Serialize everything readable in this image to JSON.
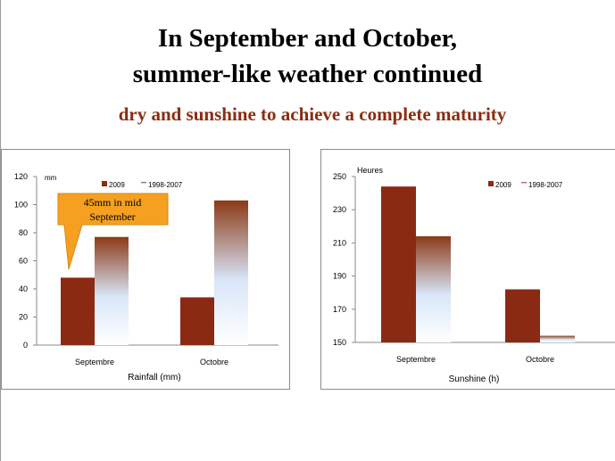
{
  "title_line1": "In September and October,",
  "title_line2": "summer-like weather continued",
  "subtitle": "dry and sunshine to achieve a complete maturity",
  "colors": {
    "title": "#000000",
    "subtitle": "#8b2d12",
    "series_2009": "#8b2a12",
    "series_avg_top": "#8b3a16",
    "series_avg_bottom": "#ffffff",
    "callout": "#f5a020"
  },
  "chart_data": [
    {
      "type": "bar",
      "id": "rainfall",
      "xlabel": "Rainfall (mm)",
      "unit_label": "mm",
      "categories": [
        "Septembre",
        "Octobre"
      ],
      "series": [
        {
          "name": "2009",
          "values": [
            48,
            34
          ]
        },
        {
          "name": "1998-2007",
          "values": [
            77,
            103
          ]
        }
      ],
      "ylim": [
        0,
        120
      ],
      "yticks": [
        0,
        20,
        40,
        60,
        80,
        100,
        120
      ],
      "legend": "top",
      "annotation": {
        "text_line1": "45mm in mid",
        "text_line2": "September",
        "target": "Septembre 2009"
      }
    },
    {
      "type": "bar",
      "id": "sunshine",
      "xlabel": "Sunshine (h)",
      "unit_label": "Heures",
      "categories": [
        "Septembre",
        "Octobre"
      ],
      "series": [
        {
          "name": "2009",
          "values": [
            244,
            182
          ]
        },
        {
          "name": "1998-2007",
          "values": [
            214,
            154
          ]
        }
      ],
      "ylim": [
        150,
        250
      ],
      "yticks": [
        150,
        170,
        190,
        210,
        230,
        250
      ],
      "legend": "top-right"
    }
  ]
}
